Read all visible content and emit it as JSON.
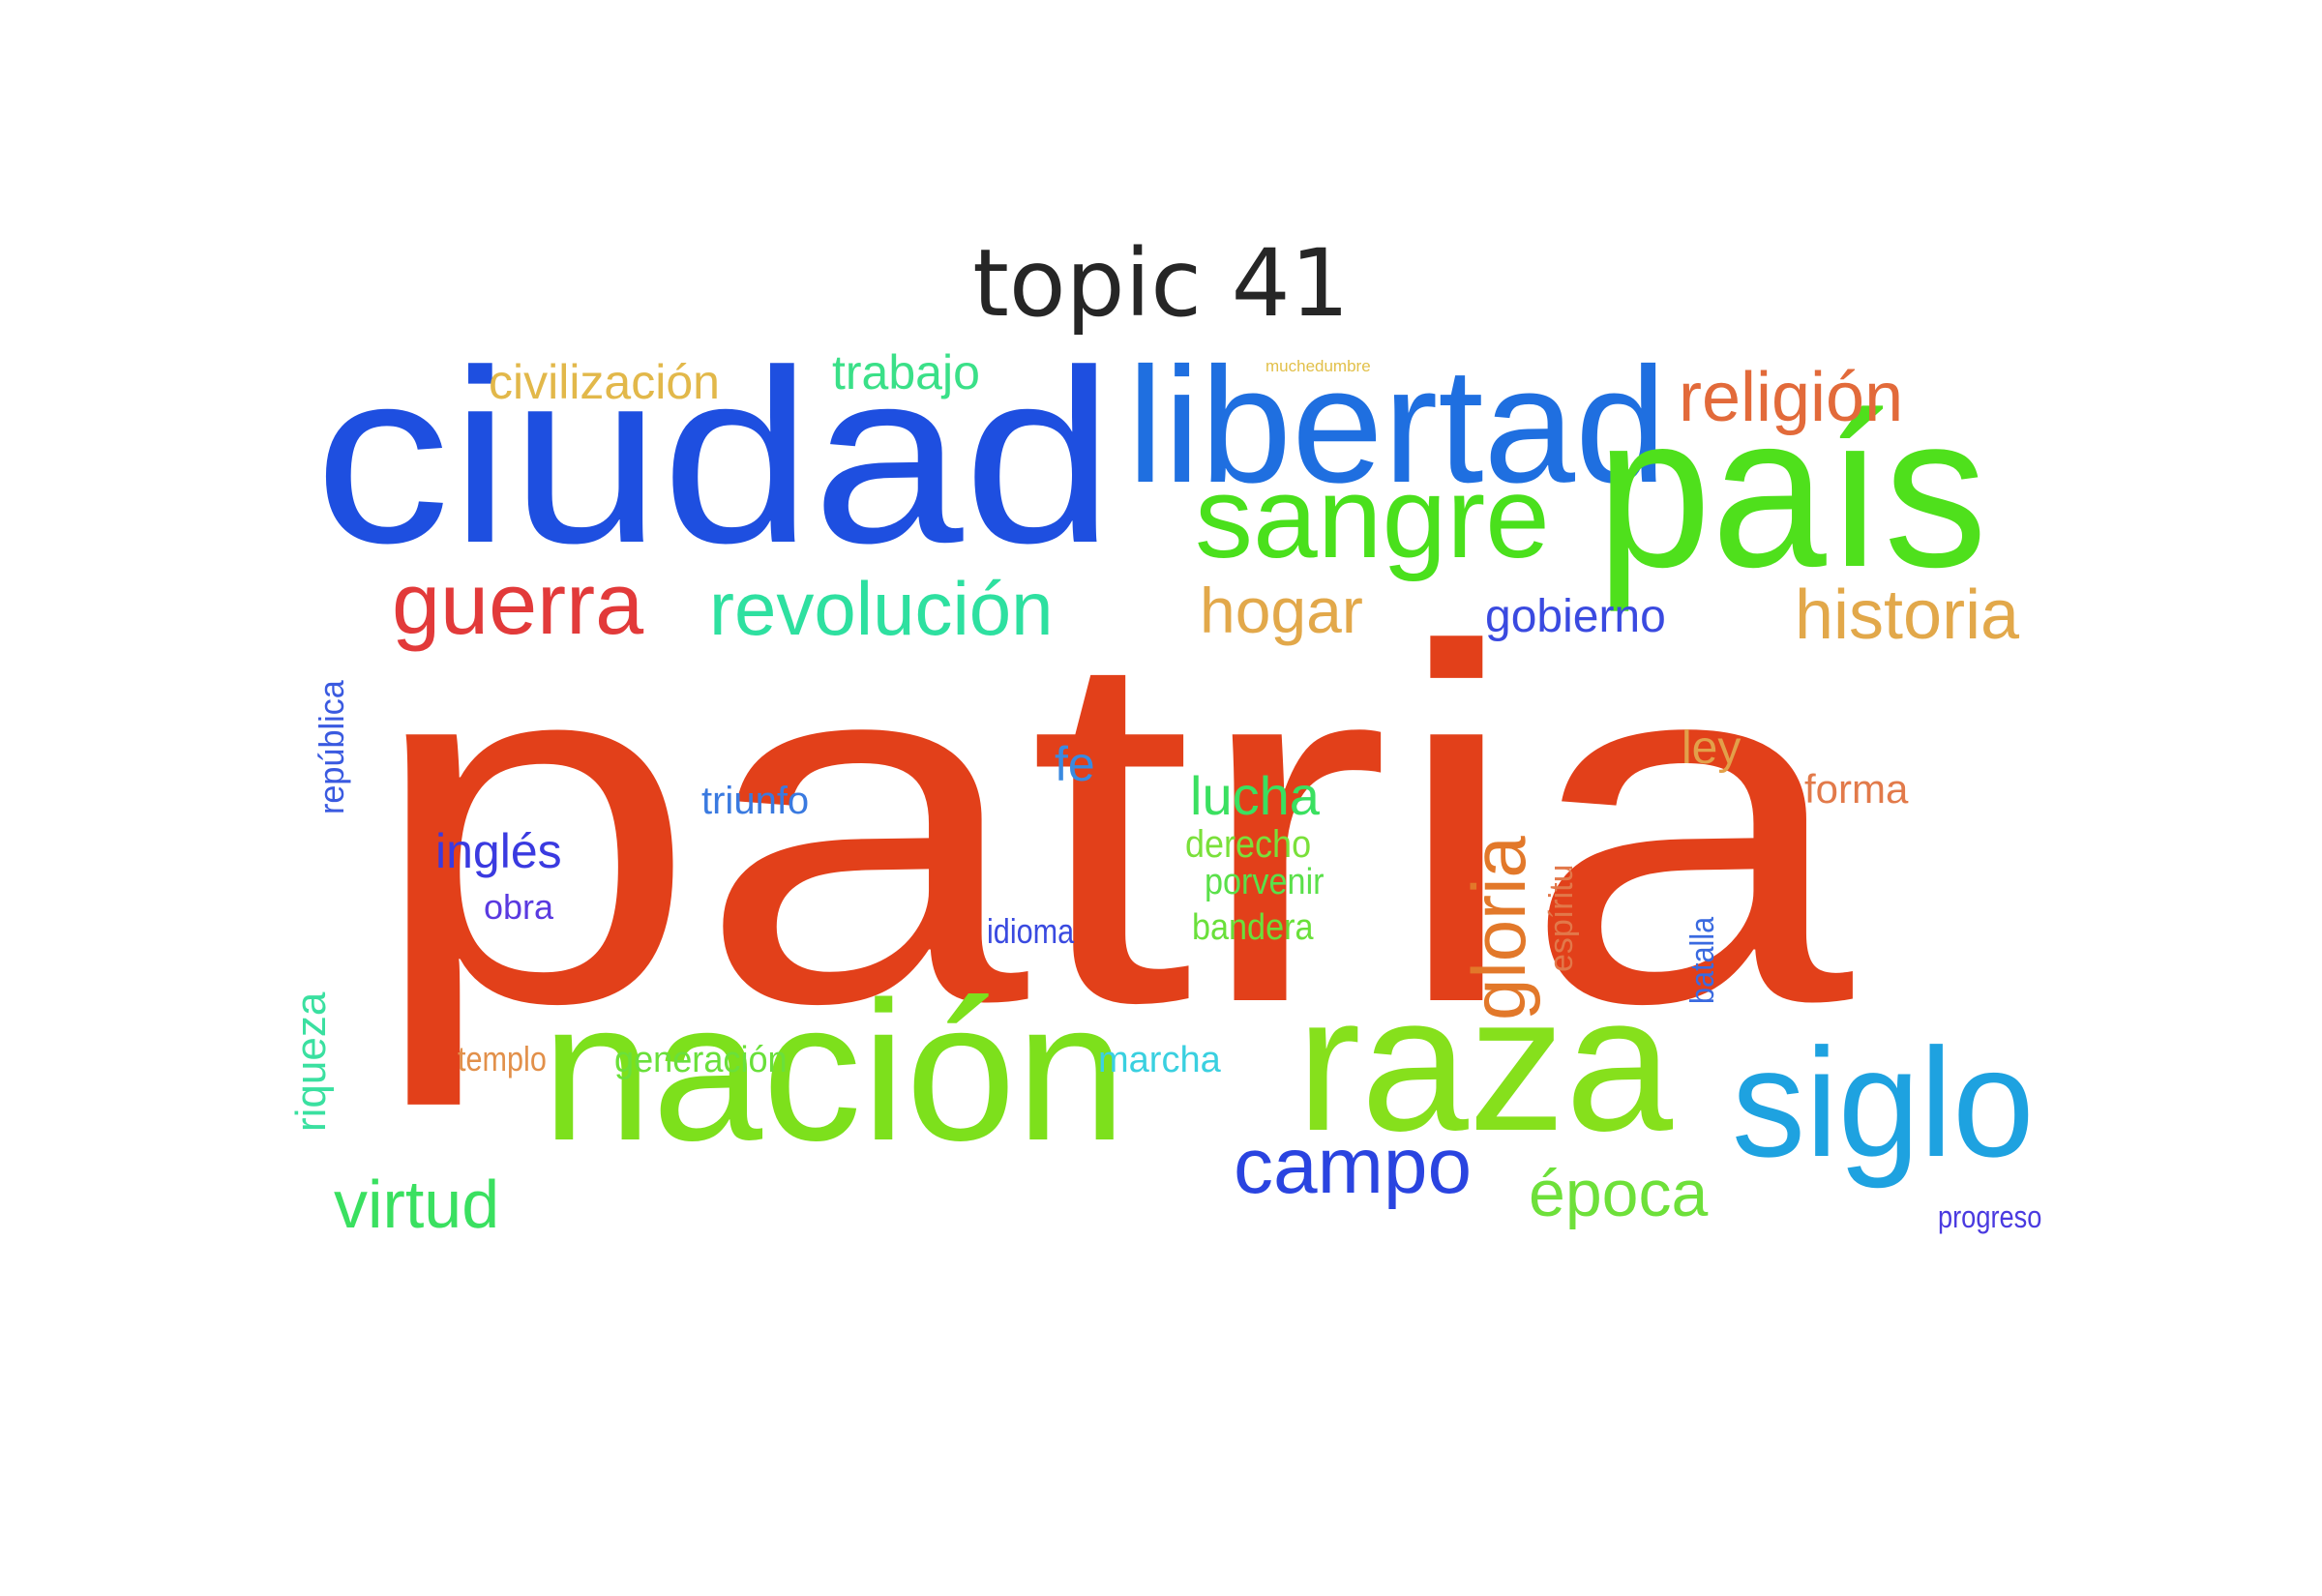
{
  "title": "topic 41",
  "words": [
    {
      "text": "patria",
      "color": "#e2401a"
    },
    {
      "text": "ciudad",
      "color": "#1e4fe0"
    },
    {
      "text": "libertad",
      "color": "#1f6fe0"
    },
    {
      "text": "país",
      "color": "#4fe01c"
    },
    {
      "text": "nación",
      "color": "#7de01c"
    },
    {
      "text": "raza",
      "color": "#86e01c"
    },
    {
      "text": "sangre",
      "color": "#4ae01c"
    },
    {
      "text": "siglo",
      "color": "#1ea2e0"
    },
    {
      "text": "guerra",
      "color": "#e23a3a"
    },
    {
      "text": "revolución",
      "color": "#2ee0a0"
    },
    {
      "text": "religión",
      "color": "#e26a3a"
    },
    {
      "text": "campo",
      "color": "#2a44e0"
    },
    {
      "text": "historia",
      "color": "#e2a84a"
    },
    {
      "text": "hogar",
      "color": "#e2a84a"
    },
    {
      "text": "gobierno",
      "color": "#3a4ae0"
    },
    {
      "text": "virtud",
      "color": "#3ae060"
    },
    {
      "text": "época",
      "color": "#6ee03a"
    },
    {
      "text": "gloria",
      "color": "#e2782a"
    },
    {
      "text": "civilización",
      "color": "#e2b84a"
    },
    {
      "text": "trabajo",
      "color": "#3ae088"
    },
    {
      "text": "lucha",
      "color": "#3ae060"
    },
    {
      "text": "inglés",
      "color": "#3a3ae0"
    },
    {
      "text": "triunfo",
      "color": "#3a7ae0"
    },
    {
      "text": "fe",
      "color": "#3a8ae0"
    },
    {
      "text": "ley",
      "color": "#e2a04a"
    },
    {
      "text": "forma",
      "color": "#e27a4a"
    },
    {
      "text": "derecho",
      "color": "#7ae03a"
    },
    {
      "text": "porvenir",
      "color": "#5ae04a"
    },
    {
      "text": "bandera",
      "color": "#6ae03a"
    },
    {
      "text": "obra",
      "color": "#5a3ae0"
    },
    {
      "text": "idioma",
      "color": "#3a4ae0"
    },
    {
      "text": "república",
      "color": "#3a5ae0"
    },
    {
      "text": "riqueza",
      "color": "#3ae0a0"
    },
    {
      "text": "espíritu",
      "color": "#e2784a"
    },
    {
      "text": "batalla",
      "color": "#3a6ae0"
    },
    {
      "text": "templo",
      "color": "#e2904a"
    },
    {
      "text": "generación",
      "color": "#6ae03a"
    },
    {
      "text": "marcha",
      "color": "#3ad0e0"
    },
    {
      "text": "progreso",
      "color": "#4a3ae0"
    },
    {
      "text": "muchedumbre",
      "color": "#e2c04a"
    }
  ]
}
